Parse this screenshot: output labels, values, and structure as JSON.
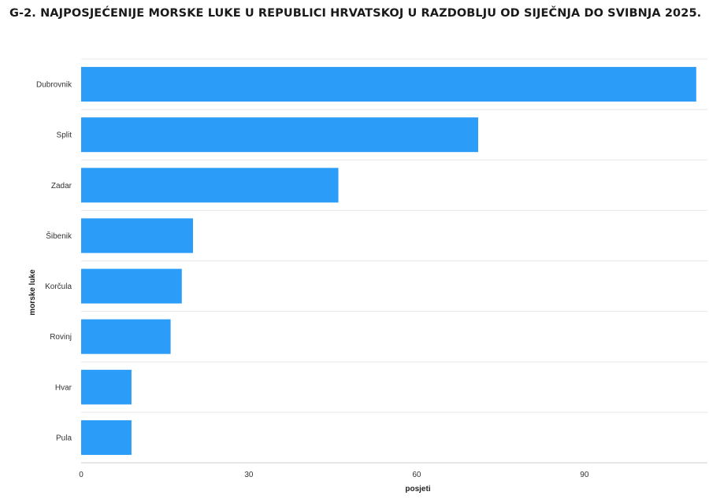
{
  "chart_data": {
    "type": "bar",
    "orientation": "horizontal",
    "title": "G-2. NAJPOSJEĆENIJE MORSKE LUKE U REPUBLICI HRVATSKOJ U RAZDOBLJU OD SIJEČNJA DO SVIBNJA 2025.",
    "categories": [
      "Dubrovnik",
      "Split",
      "Zadar",
      "Šibenik",
      "Korčula",
      "Rovinj",
      "Hvar",
      "Pula"
    ],
    "values": [
      110,
      71,
      46,
      20,
      18,
      16,
      9,
      9
    ],
    "xlabel": "posjeti",
    "ylabel": "morske luke",
    "xlim": [
      0,
      112
    ],
    "xticks": [
      0,
      30,
      60,
      90
    ],
    "grid": true,
    "bar_color": "#2b9cf7",
    "legend": "none"
  }
}
